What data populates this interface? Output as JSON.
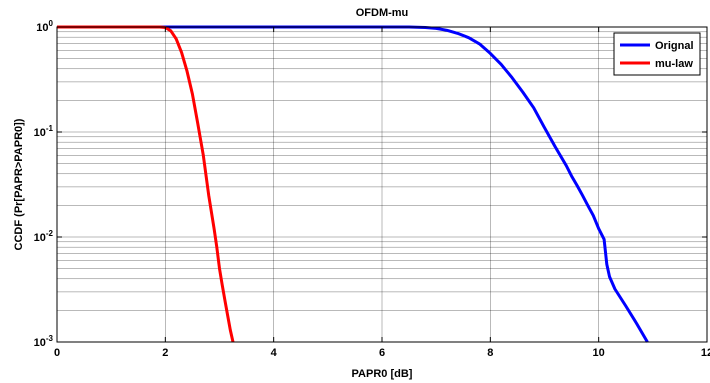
{
  "chart_data": {
    "type": "line",
    "title": "OFDM-mu",
    "xlabel": "PAPR0 [dB]",
    "ylabel": "CCDF (Pr[PAPR>PAPR0])",
    "xlim": [
      0,
      12
    ],
    "ylim": [
      0.001,
      1
    ],
    "y_scale": "log",
    "x_ticks": [
      0,
      2,
      4,
      6,
      8,
      10,
      12
    ],
    "x_tick_labels": [
      "0",
      "2",
      "4",
      "6",
      "8",
      "10",
      "12"
    ],
    "y_ticks": [
      1,
      0.1,
      0.01,
      0.001
    ],
    "y_tick_labels": [
      {
        "base": "10",
        "exp": "0"
      },
      {
        "base": "10",
        "exp": "-1"
      },
      {
        "base": "10",
        "exp": "-2"
      },
      {
        "base": "10",
        "exp": "-3"
      }
    ],
    "grid": true,
    "legend_position": "top-right",
    "series": [
      {
        "name": "Orignal",
        "color": "#0000ff",
        "x": [
          0,
          6.0,
          6.5,
          6.8,
          7.0,
          7.2,
          7.4,
          7.6,
          7.8,
          8.0,
          8.2,
          8.4,
          8.6,
          8.8,
          9.0,
          9.2,
          9.4,
          9.5,
          9.6,
          9.7,
          9.8,
          9.9,
          10.0,
          10.1,
          10.15,
          10.2,
          10.3,
          10.5,
          10.7,
          10.9
        ],
        "y": [
          1,
          1,
          1,
          0.99,
          0.97,
          0.93,
          0.87,
          0.79,
          0.69,
          0.56,
          0.44,
          0.33,
          0.24,
          0.17,
          0.11,
          0.072,
          0.048,
          0.038,
          0.031,
          0.025,
          0.02,
          0.016,
          0.012,
          0.0095,
          0.0055,
          0.0042,
          0.0032,
          0.0022,
          0.0015,
          0.001
        ]
      },
      {
        "name": "mu-law",
        "color": "#ff0000",
        "x": [
          0,
          1.9,
          2.0,
          2.1,
          2.2,
          2.3,
          2.4,
          2.5,
          2.6,
          2.7,
          2.8,
          2.9,
          2.95,
          3.0,
          3.05,
          3.1,
          3.15,
          3.2,
          3.25
        ],
        "y": [
          1,
          1,
          0.99,
          0.92,
          0.77,
          0.57,
          0.38,
          0.23,
          0.12,
          0.06,
          0.025,
          0.012,
          0.008,
          0.005,
          0.0035,
          0.0025,
          0.0018,
          0.0013,
          0.001
        ]
      }
    ]
  }
}
